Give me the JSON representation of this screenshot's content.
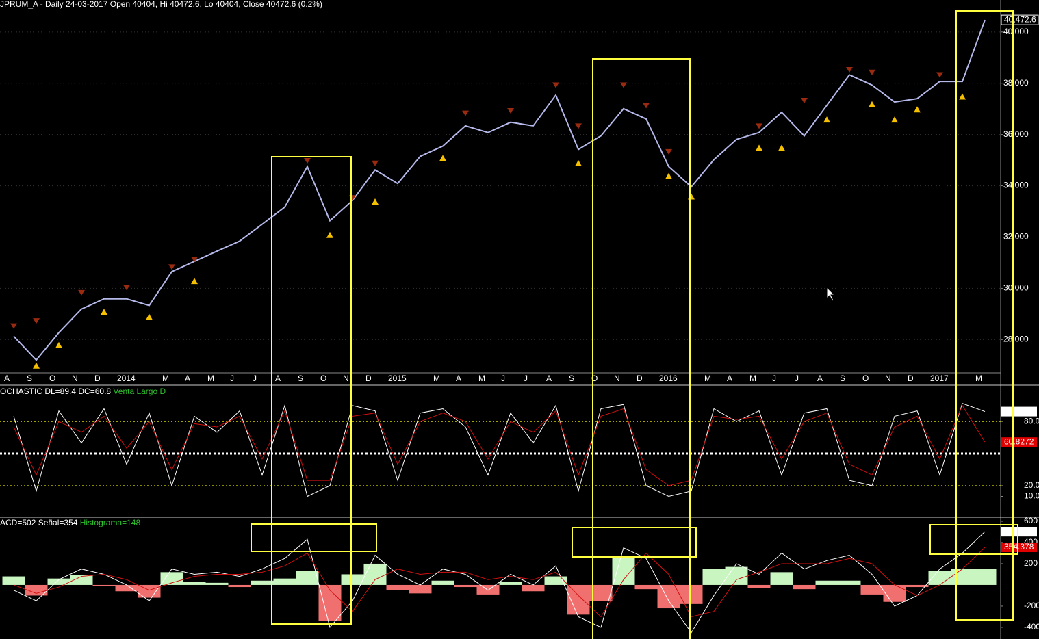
{
  "chart_data": [
    {
      "type": "line",
      "title": "JPRUM_A - Daily 24-03-2017 Open 40404, Hi 40472.6, Lo 40404, Close 40472.6 (0.2%)",
      "categories": [
        "A",
        "S",
        "O",
        "N",
        "D",
        "2014",
        null,
        "M",
        "A",
        "M",
        "J",
        "J",
        "A",
        "S",
        "O",
        "N",
        "D",
        "2015",
        null,
        "M",
        "A",
        "M",
        "J",
        "J",
        "A",
        "S",
        "O",
        "N",
        "D",
        "2016",
        null,
        "M",
        "A",
        "M",
        "J",
        "J",
        "A",
        "S",
        "O",
        "N",
        "D",
        "2017",
        null,
        "M"
      ],
      "series": [
        {
          "color": "#b4b9ea",
          "values": [
            28130,
            27200,
            28270,
            29190,
            29590,
            29590,
            29330,
            30650,
            31050,
            31450,
            31840,
            32500,
            33170,
            34750,
            32640,
            33430,
            34620,
            34090,
            35150,
            35550,
            36340,
            36080,
            36480,
            36340,
            37540,
            35420,
            35950,
            37010,
            36610,
            34750,
            33960,
            35020,
            35810,
            36080,
            36870,
            35950,
            37140,
            38330,
            37930,
            37270,
            37400,
            38070,
            38070,
            40472.6
          ],
          "value_labels": [
            null,
            null,
            null,
            null,
            null,
            null,
            null,
            null,
            null,
            null,
            null,
            null,
            null,
            null,
            null,
            null,
            null,
            null,
            null,
            null,
            null,
            null,
            null,
            null,
            null,
            null,
            null,
            null,
            null,
            null,
            null,
            null,
            null,
            null,
            null,
            null,
            null,
            null,
            null,
            null,
            null,
            null,
            null,
            "40,472.6"
          ]
        }
      ],
      "buy_signals": {
        "color": "#f5c000",
        "values": [
          null,
          27000,
          27800,
          null,
          29100,
          null,
          28900,
          null,
          30300,
          null,
          null,
          null,
          null,
          null,
          32100,
          null,
          33400,
          null,
          null,
          35100,
          null,
          null,
          null,
          null,
          null,
          34900,
          null,
          null,
          null,
          34400,
          33600,
          null,
          null,
          35500,
          35500,
          null,
          36600,
          null,
          37200,
          36600,
          37000,
          null,
          37500,
          null
        ]
      },
      "sell_signals": {
        "color": "#9a2a10",
        "values": [
          28500,
          28700,
          null,
          29800,
          null,
          30000,
          null,
          30800,
          31100,
          null,
          null,
          null,
          null,
          34950,
          null,
          33500,
          34850,
          null,
          null,
          null,
          36800,
          null,
          36900,
          null,
          37900,
          36300,
          null,
          37900,
          37100,
          35300,
          null,
          null,
          null,
          36300,
          null,
          37300,
          null,
          38500,
          38400,
          null,
          null,
          38300,
          null,
          null
        ]
      },
      "ylim": [
        26700,
        41250
      ],
      "yticks": [
        {
          "value": 28000,
          "label": "28,000"
        },
        {
          "value": 30000,
          "label": "30,000"
        },
        {
          "value": 32000,
          "label": "32,000"
        },
        {
          "value": 34000,
          "label": "34,000"
        },
        {
          "value": 36000,
          "label": "36,000"
        },
        {
          "value": 38000,
          "label": "38,000"
        },
        {
          "value": 40000,
          "label": "40,000"
        }
      ],
      "grid": true
    },
    {
      "type": "line",
      "title": "OCHASTIC DL=89.4 DC=60.8",
      "subtitle": "Venta Largo D",
      "series": [
        {
          "color": "#ffffff",
          "values": [
            85,
            15,
            90,
            60,
            92,
            40,
            88,
            20,
            85,
            70,
            90,
            30,
            95,
            10,
            20,
            95,
            90,
            25,
            88,
            92,
            75,
            30,
            88,
            60,
            95,
            15,
            92,
            96,
            20,
            10,
            15,
            92,
            80,
            90,
            30,
            88,
            92,
            25,
            20,
            85,
            90,
            30,
            97,
            89.3672
          ]
        },
        {
          "color": "#d01010",
          "values": [
            75,
            30,
            80,
            70,
            85,
            55,
            80,
            35,
            78,
            75,
            85,
            45,
            90,
            25,
            25,
            85,
            88,
            40,
            80,
            88,
            80,
            45,
            80,
            70,
            90,
            30,
            85,
            92,
            35,
            20,
            25,
            85,
            82,
            85,
            45,
            80,
            88,
            40,
            30,
            75,
            85,
            45,
            95,
            60.8272
          ]
        }
      ],
      "levels": [
        80,
        50,
        20
      ],
      "ylim": [
        -8.9,
        112.8
      ],
      "yticks": [
        {
          "value": 80,
          "label": "80.0"
        },
        {
          "value": 20,
          "label": "20.0"
        },
        {
          "value": 10,
          "label": "10.0"
        }
      ]
    },
    {
      "type": "macd",
      "title": "ACD=502 Señal=354",
      "subtitle": "Histograma=148",
      "series": [
        {
          "color": "#ffffff",
          "values": [
            -50,
            -150,
            50,
            150,
            100,
            0,
            -150,
            150,
            100,
            120,
            80,
            150,
            250,
            430,
            -400,
            -150,
            280,
            100,
            0,
            150,
            100,
            -50,
            100,
            0,
            180,
            -300,
            -400,
            350,
            250,
            -150,
            -450,
            -100,
            200,
            100,
            300,
            150,
            230,
            280,
            100,
            -200,
            -100,
            150,
            300,
            501.943
          ]
        },
        {
          "color": "#d01010",
          "values": [
            0,
            -80,
            -20,
            80,
            100,
            50,
            -50,
            20,
            80,
            100,
            100,
            120,
            180,
            300,
            -50,
            -250,
            50,
            150,
            100,
            120,
            120,
            50,
            80,
            50,
            120,
            -100,
            -300,
            50,
            300,
            100,
            -300,
            -250,
            50,
            120,
            200,
            200,
            200,
            250,
            200,
            0,
            -100,
            0,
            150,
            354.378
          ]
        }
      ],
      "histogram": {
        "positive_color": "#c8f5c0",
        "negative_color": "#f07070",
        "values": [
          80,
          -100,
          60,
          90,
          -10,
          -60,
          -120,
          120,
          30,
          20,
          -20,
          40,
          60,
          130,
          -340,
          100,
          200,
          -50,
          -80,
          40,
          -20,
          -90,
          30,
          -60,
          80,
          -280,
          -150,
          260,
          -40,
          -220,
          -180,
          150,
          170,
          -30,
          120,
          -40,
          40,
          40,
          -90,
          -160,
          -20,
          130,
          150,
          148
        ]
      },
      "ylim": [
        -510,
        632
      ],
      "yticks": [
        600,
        400,
        200,
        -200,
        -400
      ]
    }
  ]
}
